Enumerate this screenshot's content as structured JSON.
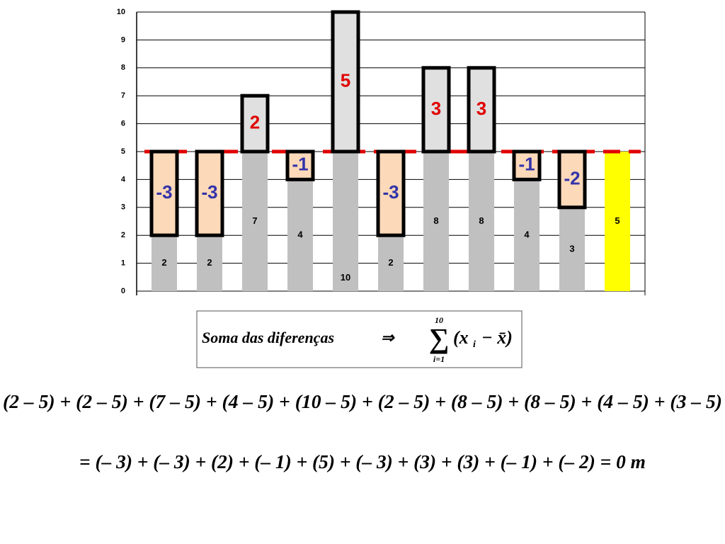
{
  "chart_data": {
    "type": "bar",
    "categories": [
      null,
      null,
      null,
      null,
      null,
      null,
      null,
      null,
      null,
      null,
      null
    ],
    "values": [
      2,
      2,
      7,
      4,
      10,
      2,
      8,
      8,
      4,
      3,
      5
    ],
    "colors": [
      "#c0c0c0",
      "#c0c0c0",
      "#c0c0c0",
      "#c0c0c0",
      "#c0c0c0",
      "#c0c0c0",
      "#c0c0c0",
      "#c0c0c0",
      "#c0c0c0",
      "#c0c0c0",
      "#ffff00"
    ],
    "mean": 5,
    "mean_line_color": "#e00000",
    "deviations": {
      "values": [
        -3,
        -3,
        2,
        -1,
        5,
        -3,
        3,
        3,
        -1,
        -2,
        null
      ],
      "positive_color": "#e00000",
      "negative_color": "#3333aa",
      "positive_fill": "#e0e0e0",
      "negative_fill": "#fcd9b8"
    },
    "ylim": [
      0,
      10
    ],
    "yticks": [
      0,
      1,
      2,
      3,
      4,
      5,
      6,
      7,
      8,
      9,
      10
    ],
    "grid": true
  },
  "formula": {
    "label": "Soma das diferenças",
    "arrow": "⇒",
    "sigma": "∑",
    "upper": "10",
    "lower": "i=1",
    "open": "(x",
    "index": "i",
    "rest": "− x̄)"
  },
  "expression": "(2 – 5) + (2 – 5) + (7 – 5) + (4 – 5) + (10 – 5) + (2 – 5) + (8 – 5) + (8 – 5) + (4 – 5) + (3 – 5)",
  "result": "= (– 3) + (– 3) + (2) + (– 1) + (5) + (– 3) + (3) + (3) + (– 1) + (– 2) = 0 m"
}
